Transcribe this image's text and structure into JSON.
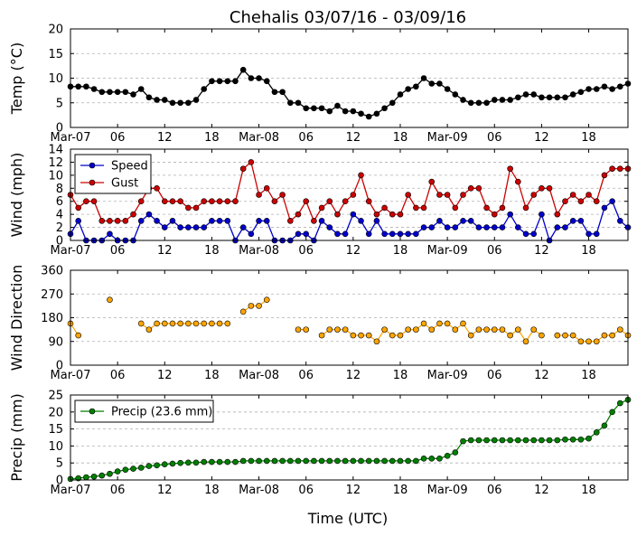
{
  "chart_data": {
    "title": "Chehalis 03/07/16 - 03/09/16",
    "xlabel": "Time (UTC)",
    "x_ticks": [
      "Mar-07",
      "06",
      "12",
      "18",
      "Mar-08",
      "06",
      "12",
      "18",
      "Mar-09",
      "06",
      "12",
      "18"
    ],
    "x_unit": "hours since 2016-03-07 00:00 UTC",
    "x_range": [
      0,
      71
    ],
    "panels": [
      {
        "type": "line",
        "ylabel": "Temp (°C)",
        "ylim": [
          0,
          20
        ],
        "yticks": [
          0,
          5,
          10,
          15,
          20
        ],
        "grid": true,
        "series": [
          {
            "name": "Temp",
            "color": "#000000",
            "x": [
              0,
              1,
              2,
              3,
              4,
              5,
              6,
              7,
              8,
              9,
              10,
              11,
              12,
              13,
              14,
              15,
              16,
              17,
              18,
              19,
              20,
              21,
              22,
              23,
              24,
              25,
              26,
              27,
              28,
              29,
              30,
              31,
              32,
              33,
              34,
              35,
              36,
              37,
              38,
              39,
              40,
              41,
              42,
              43,
              44,
              45,
              46,
              47,
              48,
              49,
              50,
              51,
              52,
              53,
              54,
              55,
              56,
              57,
              58,
              59,
              60,
              61,
              62,
              63,
              64,
              65,
              66,
              67,
              68,
              69,
              70,
              71
            ],
            "y": [
              8.3,
              8.3,
              8.3,
              7.8,
              7.2,
              7.2,
              7.2,
              7.2,
              6.7,
              7.8,
              6.1,
              5.6,
              5.6,
              5.0,
              5.0,
              5.0,
              5.6,
              7.8,
              9.4,
              9.4,
              9.4,
              9.4,
              11.7,
              10.0,
              10.0,
              9.4,
              7.2,
              7.2,
              5.0,
              5.0,
              3.9,
              3.9,
              3.9,
              3.3,
              4.4,
              3.3,
              3.3,
              2.8,
              2.2,
              2.8,
              3.9,
              5.0,
              6.7,
              7.8,
              8.3,
              10.0,
              8.9,
              8.9,
              7.8,
              6.7,
              5.6,
              5.0,
              5.0,
              5.0,
              5.6,
              5.6,
              5.6,
              6.1,
              6.7,
              6.7,
              6.1,
              6.1,
              6.1,
              6.1,
              6.7,
              7.2,
              7.8,
              7.8,
              8.3,
              7.8,
              8.3,
              8.9
            ]
          }
        ]
      },
      {
        "type": "line",
        "ylabel": "Wind (mph)",
        "ylim": [
          0,
          14
        ],
        "yticks": [
          0,
          2,
          4,
          6,
          8,
          10,
          12,
          14
        ],
        "grid": true,
        "legend": "top-left",
        "series": [
          {
            "name": "Speed",
            "color": "#0000cc",
            "x": [
              0,
              1,
              2,
              3,
              4,
              5,
              6,
              7,
              8,
              9,
              10,
              11,
              12,
              13,
              14,
              15,
              16,
              17,
              18,
              19,
              20,
              21,
              22,
              23,
              24,
              25,
              26,
              27,
              28,
              29,
              30,
              31,
              32,
              33,
              34,
              35,
              36,
              37,
              38,
              39,
              40,
              41,
              42,
              43,
              44,
              45,
              46,
              47,
              48,
              49,
              50,
              51,
              52,
              53,
              54,
              55,
              56,
              57,
              58,
              59,
              60,
              61,
              62,
              63,
              64,
              65,
              66,
              67,
              68,
              69,
              70,
              71
            ],
            "y": [
              1,
              3,
              0,
              0,
              0,
              1,
              0,
              0,
              0,
              3,
              4,
              3,
              2,
              3,
              2,
              2,
              2,
              2,
              3,
              3,
              3,
              0,
              2,
              1,
              3,
              3,
              0,
              0,
              0,
              1,
              1,
              0,
              3,
              2,
              1,
              1,
              4,
              3,
              1,
              3,
              1,
              1,
              1,
              1,
              1,
              2,
              2,
              3,
              2,
              2,
              3,
              3,
              2,
              2,
              2,
              2,
              4,
              2,
              1,
              1,
              4,
              0,
              2,
              2,
              3,
              3,
              1,
              1,
              5,
              6,
              3,
              2
            ]
          },
          {
            "name": "Gust",
            "color": "#cc0000",
            "x": [
              0,
              1,
              2,
              3,
              4,
              5,
              6,
              7,
              8,
              9,
              10,
              11,
              12,
              13,
              14,
              15,
              16,
              17,
              18,
              19,
              20,
              21,
              22,
              23,
              24,
              25,
              26,
              27,
              28,
              29,
              30,
              31,
              32,
              33,
              34,
              35,
              36,
              37,
              38,
              39,
              40,
              41,
              42,
              43,
              44,
              45,
              46,
              47,
              48,
              49,
              50,
              51,
              52,
              53,
              54,
              55,
              56,
              57,
              58,
              59,
              60,
              61,
              62,
              63,
              64,
              65,
              66,
              67,
              68,
              69,
              70,
              71
            ],
            "y": [
              7,
              5,
              6,
              6,
              3,
              3,
              3,
              3,
              4,
              6,
              8,
              8,
              6,
              6,
              6,
              5,
              5,
              6,
              6,
              6,
              6,
              6,
              11,
              12,
              7,
              8,
              6,
              7,
              3,
              4,
              6,
              3,
              5,
              6,
              4,
              6,
              7,
              10,
              6,
              4,
              5,
              4,
              4,
              7,
              5,
              5,
              9,
              7,
              7,
              5,
              7,
              8,
              8,
              5,
              4,
              5,
              11,
              9,
              5,
              7,
              8,
              8,
              4,
              6,
              7,
              6,
              7,
              6,
              10,
              11,
              11,
              11
            ]
          }
        ]
      },
      {
        "type": "scatter",
        "ylabel": "Wind Direction",
        "ylim": [
          0,
          360
        ],
        "yticks": [
          0,
          90,
          180,
          270,
          360
        ],
        "grid": true,
        "series": [
          {
            "name": "Direction",
            "color": "#ffa500",
            "x": [
              0,
              1,
              5,
              9,
              10,
              11,
              12,
              13,
              14,
              15,
              16,
              17,
              18,
              19,
              20,
              22,
              23,
              24,
              25,
              29,
              30,
              32,
              33,
              34,
              35,
              36,
              37,
              38,
              39,
              40,
              41,
              42,
              43,
              44,
              45,
              46,
              47,
              48,
              49,
              50,
              51,
              52,
              53,
              54,
              55,
              56,
              57,
              58,
              59,
              60,
              62,
              63,
              64,
              65,
              66,
              67,
              68,
              69,
              70,
              71
            ],
            "y": [
              158,
              113,
              248,
              158,
              135,
              158,
              158,
              158,
              158,
              158,
              158,
              158,
              158,
              158,
              158,
              203,
              225,
              225,
              248,
              135,
              135,
              113,
              135,
              135,
              135,
              113,
              113,
              113,
              90,
              135,
              113,
              113,
              135,
              135,
              158,
              135,
              158,
              158,
              135,
              158,
              113,
              135,
              135,
              135,
              135,
              113,
              135,
              90,
              135,
              113,
              113,
              113,
              113,
              90,
              90,
              90,
              113,
              113,
              135,
              113
            ]
          }
        ]
      },
      {
        "type": "line",
        "ylabel": "Precip (mm)",
        "ylim": [
          0,
          25
        ],
        "yticks": [
          0,
          5,
          10,
          15,
          20,
          25
        ],
        "grid": true,
        "legend": "top-left",
        "series": [
          {
            "name": "Precip (23.6 mm)",
            "color": "#008000",
            "x": [
              0,
              1,
              2,
              3,
              4,
              5,
              6,
              7,
              8,
              9,
              10,
              11,
              12,
              13,
              14,
              15,
              16,
              17,
              18,
              19,
              20,
              21,
              22,
              23,
              24,
              25,
              26,
              27,
              28,
              29,
              30,
              31,
              32,
              33,
              34,
              35,
              36,
              37,
              38,
              39,
              40,
              41,
              42,
              43,
              44,
              45,
              46,
              47,
              48,
              49,
              50,
              51,
              52,
              53,
              54,
              55,
              56,
              57,
              58,
              59,
              60,
              61,
              62,
              63,
              64,
              65,
              66,
              67,
              68,
              69,
              70,
              71
            ],
            "y": [
              0.3,
              0.5,
              0.8,
              1.0,
              1.3,
              1.8,
              2.5,
              3.0,
              3.3,
              3.6,
              4.1,
              4.3,
              4.6,
              4.8,
              5.0,
              5.1,
              5.1,
              5.3,
              5.3,
              5.3,
              5.3,
              5.3,
              5.6,
              5.6,
              5.6,
              5.6,
              5.6,
              5.6,
              5.6,
              5.6,
              5.6,
              5.6,
              5.6,
              5.6,
              5.6,
              5.6,
              5.6,
              5.6,
              5.6,
              5.6,
              5.6,
              5.6,
              5.6,
              5.6,
              5.6,
              6.3,
              6.3,
              6.3,
              7.1,
              8.1,
              11.4,
              11.7,
              11.7,
              11.7,
              11.7,
              11.7,
              11.7,
              11.7,
              11.7,
              11.7,
              11.7,
              11.7,
              11.7,
              11.9,
              11.9,
              11.9,
              12.2,
              14.0,
              16.0,
              20.0,
              22.6,
              23.6
            ]
          }
        ]
      }
    ]
  }
}
